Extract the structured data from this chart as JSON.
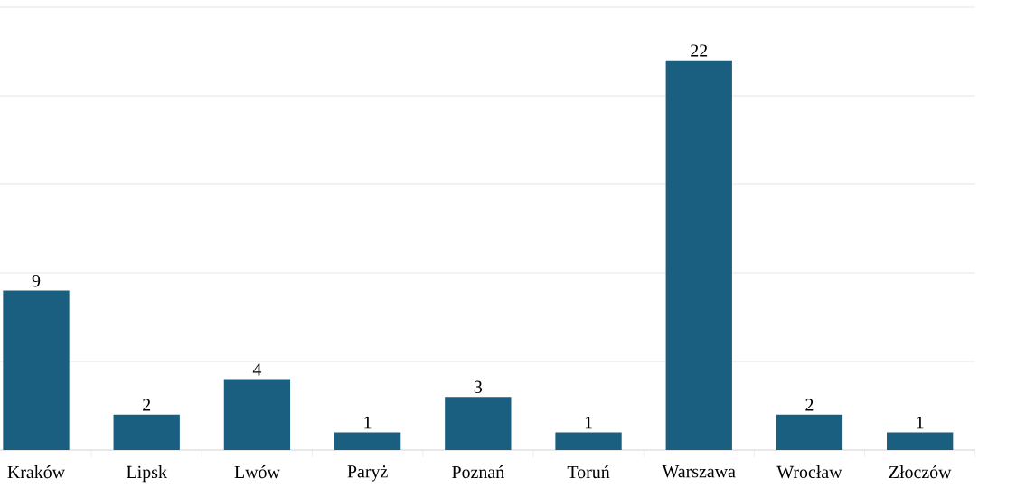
{
  "chart_data": {
    "type": "bar",
    "categories": [
      "Kraków",
      "Lipsk",
      "Lwów",
      "Paryż",
      "Poznań",
      "Toruń",
      "Warszawa",
      "Wrocław",
      "Złoczów"
    ],
    "values": [
      9,
      2,
      4,
      1,
      3,
      1,
      22,
      2,
      1
    ],
    "color": "#1a5f80",
    "ylim": [
      0,
      25
    ],
    "yticks": [
      {
        "value": 0,
        "label": null
      },
      {
        "value": 5,
        "label": null
      },
      {
        "value": 10,
        "label": null
      },
      {
        "value": 15,
        "label": null
      },
      {
        "value": 20,
        "label": null
      },
      {
        "value": 25,
        "label": null
      }
    ],
    "tick_labels": "x",
    "grid": "y",
    "data_labels": true
  }
}
